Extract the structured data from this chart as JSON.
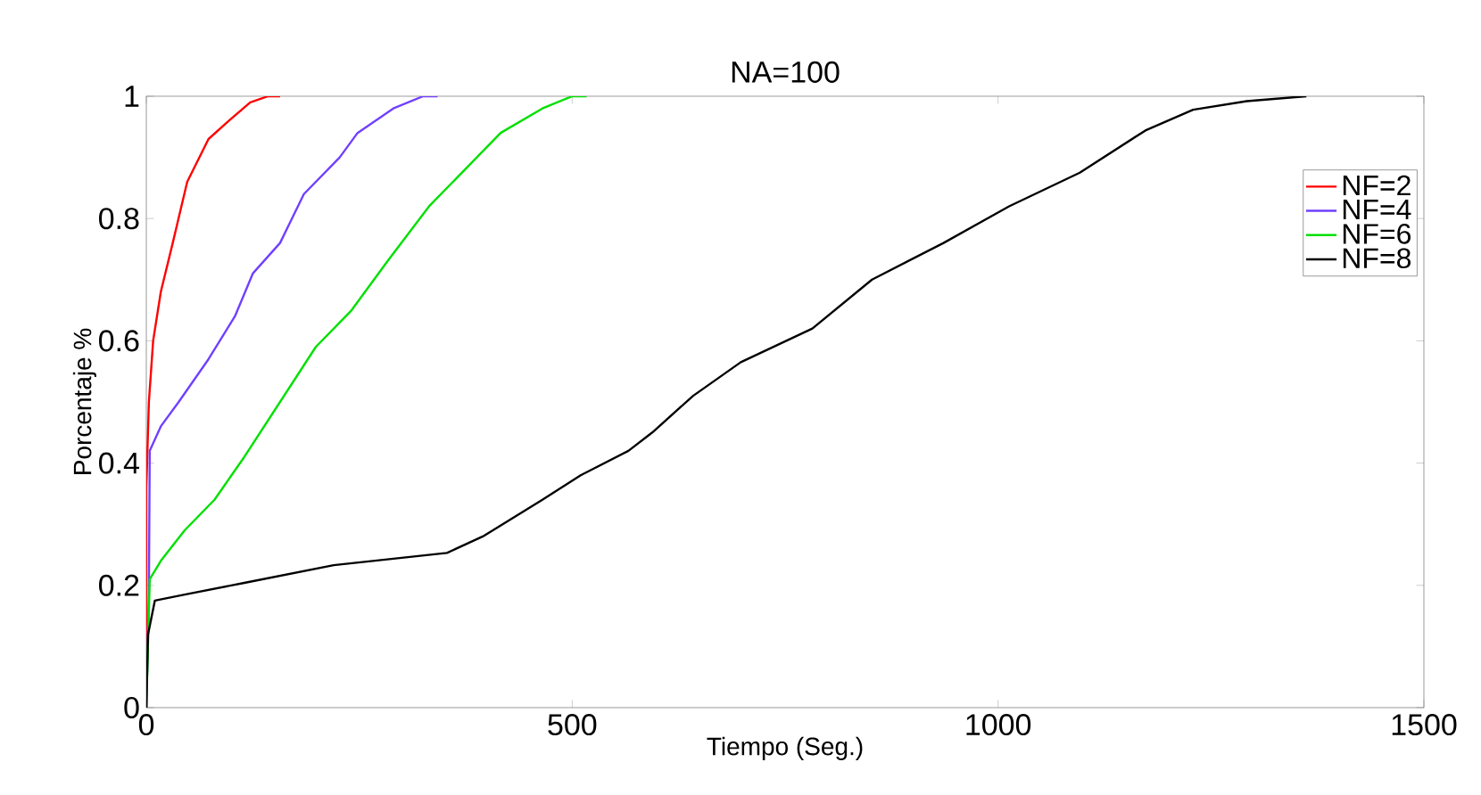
{
  "chart_data": {
    "type": "line",
    "title": "NA=100",
    "xlabel": "Tiempo (Seg.)",
    "ylabel": "Porcentaje %",
    "xlim": [
      0,
      1500
    ],
    "ylim": [
      0,
      1
    ],
    "xticks": [
      0,
      500,
      1000,
      1500
    ],
    "yticks": [
      0,
      0.2,
      0.4,
      0.6,
      0.8,
      1
    ],
    "legend": "top right",
    "grid": false,
    "series": [
      {
        "name": "NF=2",
        "color": "#ff0000",
        "x": [
          0,
          0,
          3,
          8,
          17,
          31,
          48,
          73,
          97,
          122,
          143,
          157
        ],
        "values": [
          0,
          0.36,
          0.5,
          0.6,
          0.68,
          0.76,
          0.86,
          0.93,
          0.96,
          0.99,
          1,
          1
        ]
      },
      {
        "name": "NF=4",
        "color": "#7040ff",
        "x": [
          0,
          3,
          4,
          17,
          38,
          73,
          104,
          125,
          157,
          185,
          227,
          248,
          290,
          325,
          342
        ],
        "values": [
          0,
          0.185,
          0.42,
          0.46,
          0.5,
          0.57,
          0.64,
          0.71,
          0.76,
          0.84,
          0.9,
          0.94,
          0.98,
          1,
          1
        ]
      },
      {
        "name": "NF=6",
        "color": "#00e000",
        "x": [
          0,
          4,
          17,
          45,
          80,
          115,
          157,
          199,
          241,
          283,
          332,
          374,
          416,
          465,
          500,
          517
        ],
        "values": [
          0,
          0.21,
          0.24,
          0.29,
          0.34,
          0.41,
          0.5,
          0.59,
          0.65,
          0.73,
          0.82,
          0.88,
          0.94,
          0.98,
          1,
          1
        ]
      },
      {
        "name": "NF=8",
        "color": "#000000",
        "x": [
          0,
          2,
          10,
          45,
          115,
          220,
          353,
          395,
          465,
          510,
          566,
          594,
          642,
          698,
          782,
          852,
          936,
          1013,
          1096,
          1173,
          1229,
          1292,
          1362
        ],
        "values": [
          0,
          0.12,
          0.175,
          0.185,
          0.204,
          0.233,
          0.253,
          0.28,
          0.34,
          0.38,
          0.42,
          0.45,
          0.51,
          0.565,
          0.62,
          0.7,
          0.76,
          0.82,
          0.875,
          0.944,
          0.978,
          0.992,
          1
        ]
      }
    ]
  }
}
